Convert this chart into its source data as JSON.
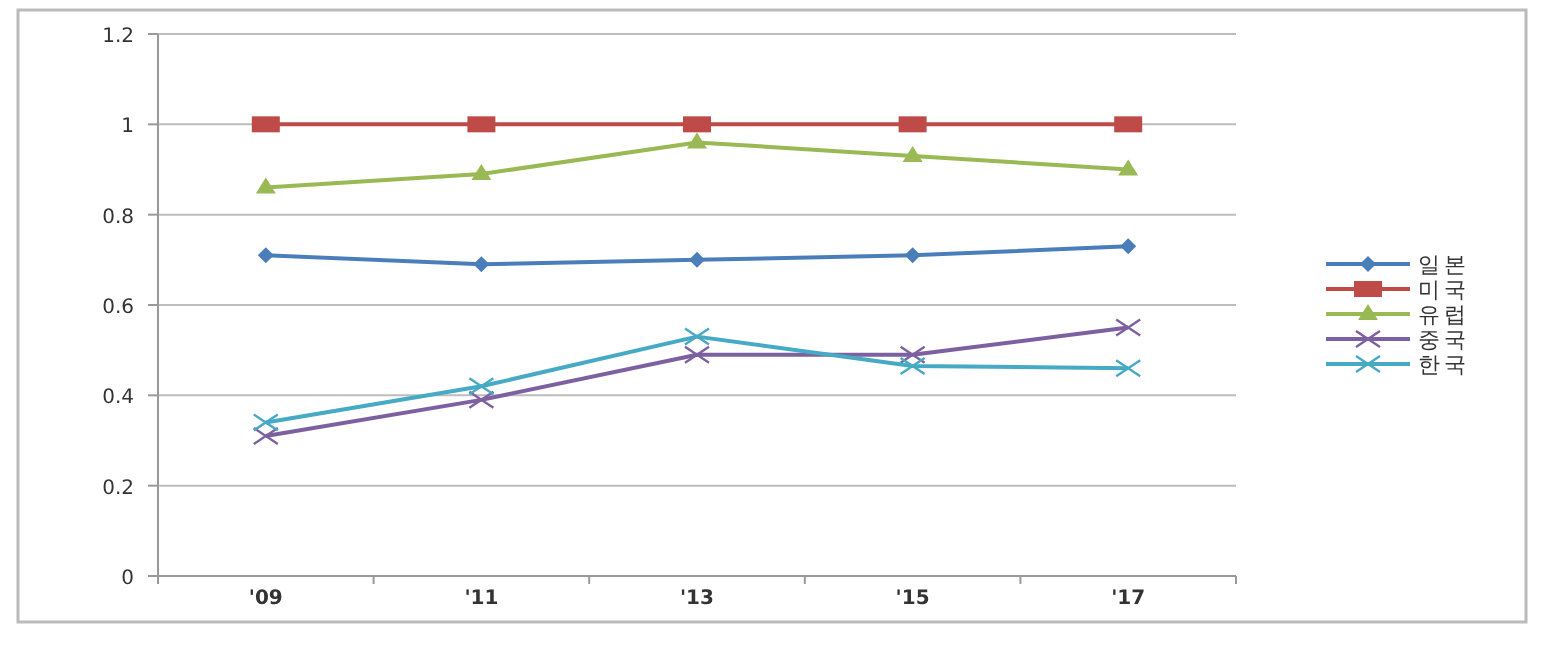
{
  "chart_data": {
    "type": "line",
    "categories": [
      "'09",
      "'11",
      "'13",
      "'15",
      "'17"
    ],
    "series": [
      {
        "name": "일본",
        "color": "#4a7ebb",
        "marker": "diamond",
        "values": [
          0.71,
          0.69,
          0.7,
          0.71,
          0.73
        ]
      },
      {
        "name": "미국",
        "color": "#be4b48",
        "marker": "square",
        "values": [
          1,
          1,
          1,
          1,
          1
        ]
      },
      {
        "name": "유럽",
        "color": "#98b954",
        "marker": "triangle",
        "values": [
          0.86,
          0.89,
          0.96,
          0.93,
          0.9
        ]
      },
      {
        "name": "중국",
        "color": "#7d60a0",
        "marker": "cross",
        "values": [
          0.31,
          0.39,
          0.49,
          0.49,
          0.55
        ]
      },
      {
        "name": "한국",
        "color": "#46aac5",
        "marker": "cross",
        "values": [
          0.34,
          0.42,
          0.53,
          0.465,
          0.46
        ]
      }
    ],
    "ylim": [
      0,
      1.2
    ],
    "yticks": [
      0,
      0.2,
      0.4,
      0.6,
      0.8,
      1,
      1.2
    ],
    "grid": "y",
    "legend": "right",
    "line_style": "solid"
  }
}
